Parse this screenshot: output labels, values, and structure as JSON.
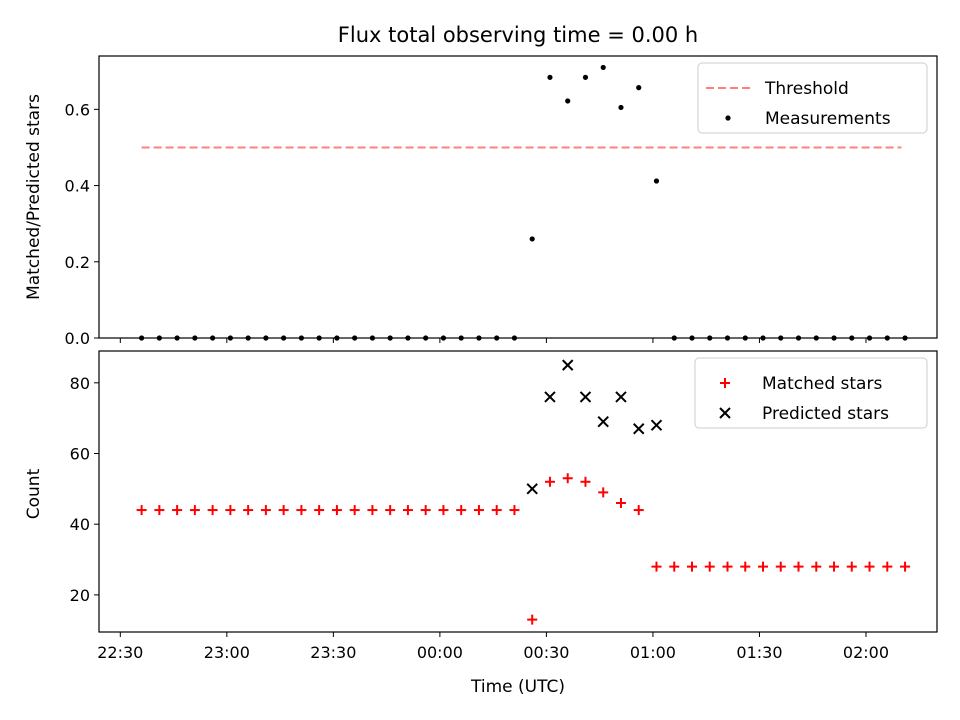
{
  "chart_data": [
    {
      "type": "scatter",
      "title": "Flux total observing time = 0.00 h",
      "ylabel": "Matched/Predicted stars",
      "ylim": [
        0,
        0.74
      ],
      "yticks": [
        0.0,
        0.2,
        0.4,
        0.6
      ],
      "ytick_labels": [
        "0.0",
        "0.2",
        "0.4",
        "0.6"
      ],
      "legend_position": "top-right",
      "threshold": {
        "name": "Threshold",
        "value": 0.5,
        "x_range": [
          "22:36",
          "02:10"
        ],
        "color": "#ff7f7f",
        "style": "dashed"
      },
      "series": [
        {
          "name": "Measurements",
          "color": "#000000",
          "marker": "dot",
          "points": [
            [
              "22:36",
              0.0
            ],
            [
              "22:41",
              0.0
            ],
            [
              "22:46",
              0.0
            ],
            [
              "22:51",
              0.0
            ],
            [
              "22:56",
              0.0
            ],
            [
              "23:01",
              0.0
            ],
            [
              "23:06",
              0.0
            ],
            [
              "23:11",
              0.0
            ],
            [
              "23:16",
              0.0
            ],
            [
              "23:21",
              0.0
            ],
            [
              "23:26",
              0.0
            ],
            [
              "23:31",
              0.0
            ],
            [
              "23:36",
              0.0
            ],
            [
              "23:41",
              0.0
            ],
            [
              "23:46",
              0.0
            ],
            [
              "23:51",
              0.0
            ],
            [
              "23:56",
              0.0
            ],
            [
              "00:01",
              0.0
            ],
            [
              "00:06",
              0.0
            ],
            [
              "00:11",
              0.0
            ],
            [
              "00:16",
              0.0
            ],
            [
              "00:21",
              0.0
            ],
            [
              "00:26",
              0.26
            ],
            [
              "00:31",
              0.684
            ],
            [
              "00:36",
              0.622
            ],
            [
              "00:41",
              0.684
            ],
            [
              "00:46",
              0.71
            ],
            [
              "00:51",
              0.605
            ],
            [
              "00:56",
              0.657
            ],
            [
              "01:01",
              0.412
            ],
            [
              "01:06",
              0.0
            ],
            [
              "01:11",
              0.0
            ],
            [
              "01:16",
              0.0
            ],
            [
              "01:21",
              0.0
            ],
            [
              "01:26",
              0.0
            ],
            [
              "01:31",
              0.0
            ],
            [
              "01:36",
              0.0
            ],
            [
              "01:41",
              0.0
            ],
            [
              "01:46",
              0.0
            ],
            [
              "01:51",
              0.0
            ],
            [
              "01:56",
              0.0
            ],
            [
              "02:01",
              0.0
            ],
            [
              "02:06",
              0.0
            ],
            [
              "02:11",
              0.0
            ]
          ]
        }
      ]
    },
    {
      "type": "scatter",
      "ylabel": "Count",
      "xlabel": "Time (UTC)",
      "ylim": [
        9.5,
        89
      ],
      "yticks": [
        20,
        40,
        60,
        80
      ],
      "ytick_labels": [
        "20",
        "40",
        "60",
        "80"
      ],
      "xlim": [
        "22:24",
        "02:20"
      ],
      "xticks": [
        "22:30",
        "23:00",
        "23:30",
        "00:00",
        "00:30",
        "01:00",
        "01:30",
        "02:00"
      ],
      "xtick_labels": [
        "22:30",
        "23:00",
        "23:30",
        "00:00",
        "00:30",
        "01:00",
        "01:30",
        "02:00"
      ],
      "legend_position": "top-right",
      "series": [
        {
          "name": "Matched stars",
          "color": "#ff0000",
          "marker": "plus",
          "points": [
            [
              "22:36",
              44
            ],
            [
              "22:41",
              44
            ],
            [
              "22:46",
              44
            ],
            [
              "22:51",
              44
            ],
            [
              "22:56",
              44
            ],
            [
              "23:01",
              44
            ],
            [
              "23:06",
              44
            ],
            [
              "23:11",
              44
            ],
            [
              "23:16",
              44
            ],
            [
              "23:21",
              44
            ],
            [
              "23:26",
              44
            ],
            [
              "23:31",
              44
            ],
            [
              "23:36",
              44
            ],
            [
              "23:41",
              44
            ],
            [
              "23:46",
              44
            ],
            [
              "23:51",
              44
            ],
            [
              "23:56",
              44
            ],
            [
              "00:01",
              44
            ],
            [
              "00:06",
              44
            ],
            [
              "00:11",
              44
            ],
            [
              "00:16",
              44
            ],
            [
              "00:21",
              44
            ],
            [
              "00:26",
              13
            ],
            [
              "00:31",
              52
            ],
            [
              "00:36",
              53
            ],
            [
              "00:41",
              52
            ],
            [
              "00:46",
              49
            ],
            [
              "00:51",
              46
            ],
            [
              "00:56",
              44
            ],
            [
              "01:01",
              28
            ],
            [
              "01:06",
              28
            ],
            [
              "01:11",
              28
            ],
            [
              "01:16",
              28
            ],
            [
              "01:21",
              28
            ],
            [
              "01:26",
              28
            ],
            [
              "01:31",
              28
            ],
            [
              "01:36",
              28
            ],
            [
              "01:41",
              28
            ],
            [
              "01:46",
              28
            ],
            [
              "01:51",
              28
            ],
            [
              "01:56",
              28
            ],
            [
              "02:01",
              28
            ],
            [
              "02:06",
              28
            ],
            [
              "02:11",
              28
            ]
          ]
        },
        {
          "name": "Predicted stars",
          "color": "#000000",
          "marker": "x",
          "points": [
            [
              "00:26",
              50
            ],
            [
              "00:31",
              76
            ],
            [
              "00:36",
              85
            ],
            [
              "00:41",
              76
            ],
            [
              "00:46",
              69
            ],
            [
              "00:51",
              76
            ],
            [
              "00:56",
              67
            ],
            [
              "01:01",
              68
            ]
          ]
        }
      ]
    }
  ]
}
